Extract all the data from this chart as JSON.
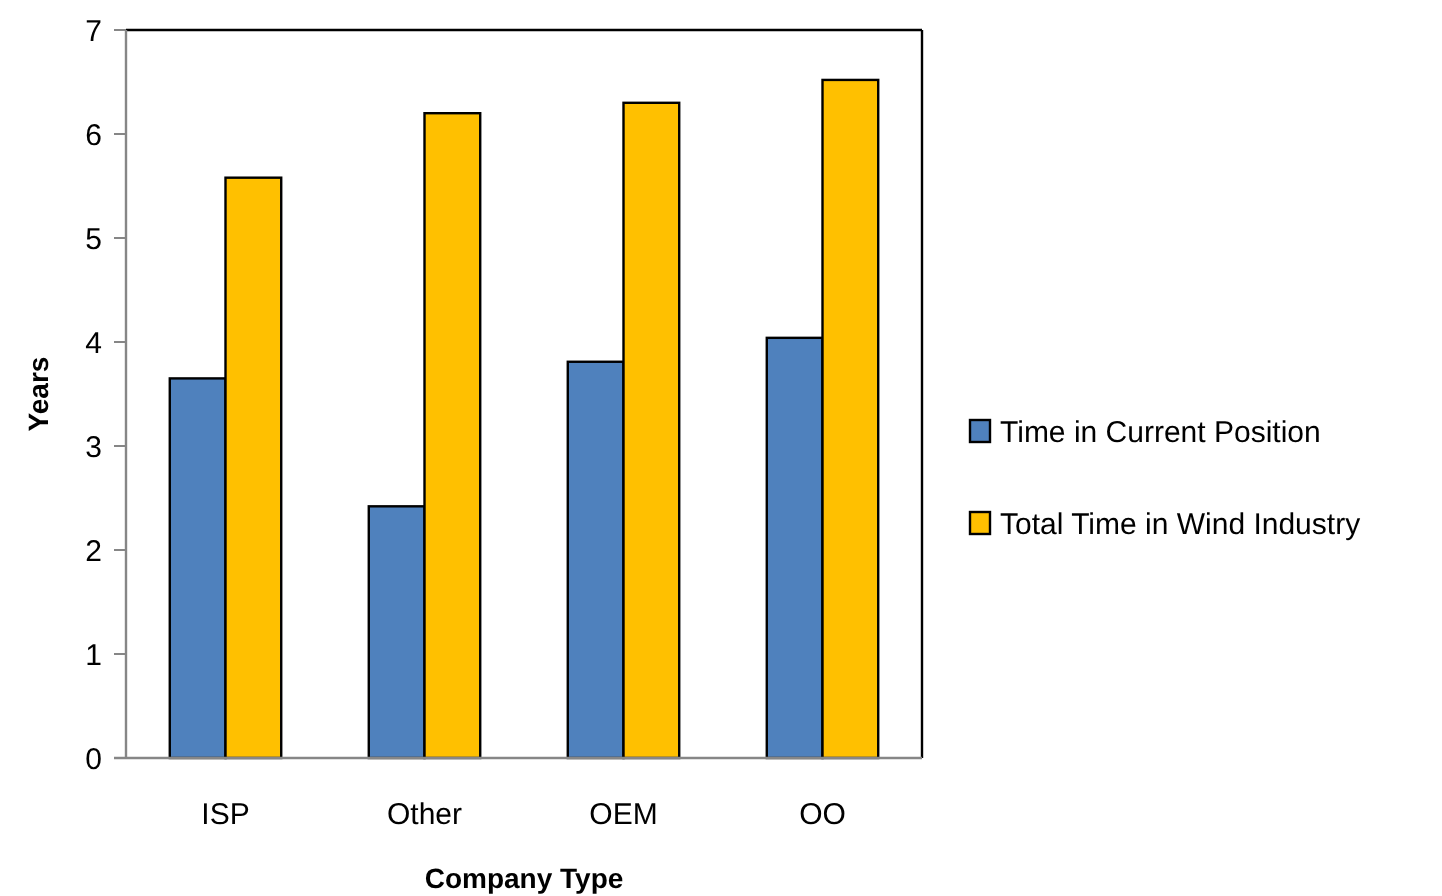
{
  "chart_data": {
    "type": "bar",
    "xlabel": "Company Type",
    "ylabel": "Years",
    "categories": [
      "ISP",
      "Other",
      "OEM",
      "OO"
    ],
    "series": [
      {
        "name": "Time in Current Position",
        "color": "#4f81bd",
        "values": [
          3.65,
          2.42,
          3.81,
          4.04
        ]
      },
      {
        "name": "Total Time in Wind Industry",
        "color": "#ffc000",
        "values": [
          5.58,
          6.2,
          6.3,
          6.52
        ]
      }
    ],
    "ylim": [
      0,
      7
    ],
    "yticks": [
      0,
      1,
      2,
      3,
      4,
      5,
      6,
      7
    ],
    "grid": false,
    "legend": "right"
  }
}
